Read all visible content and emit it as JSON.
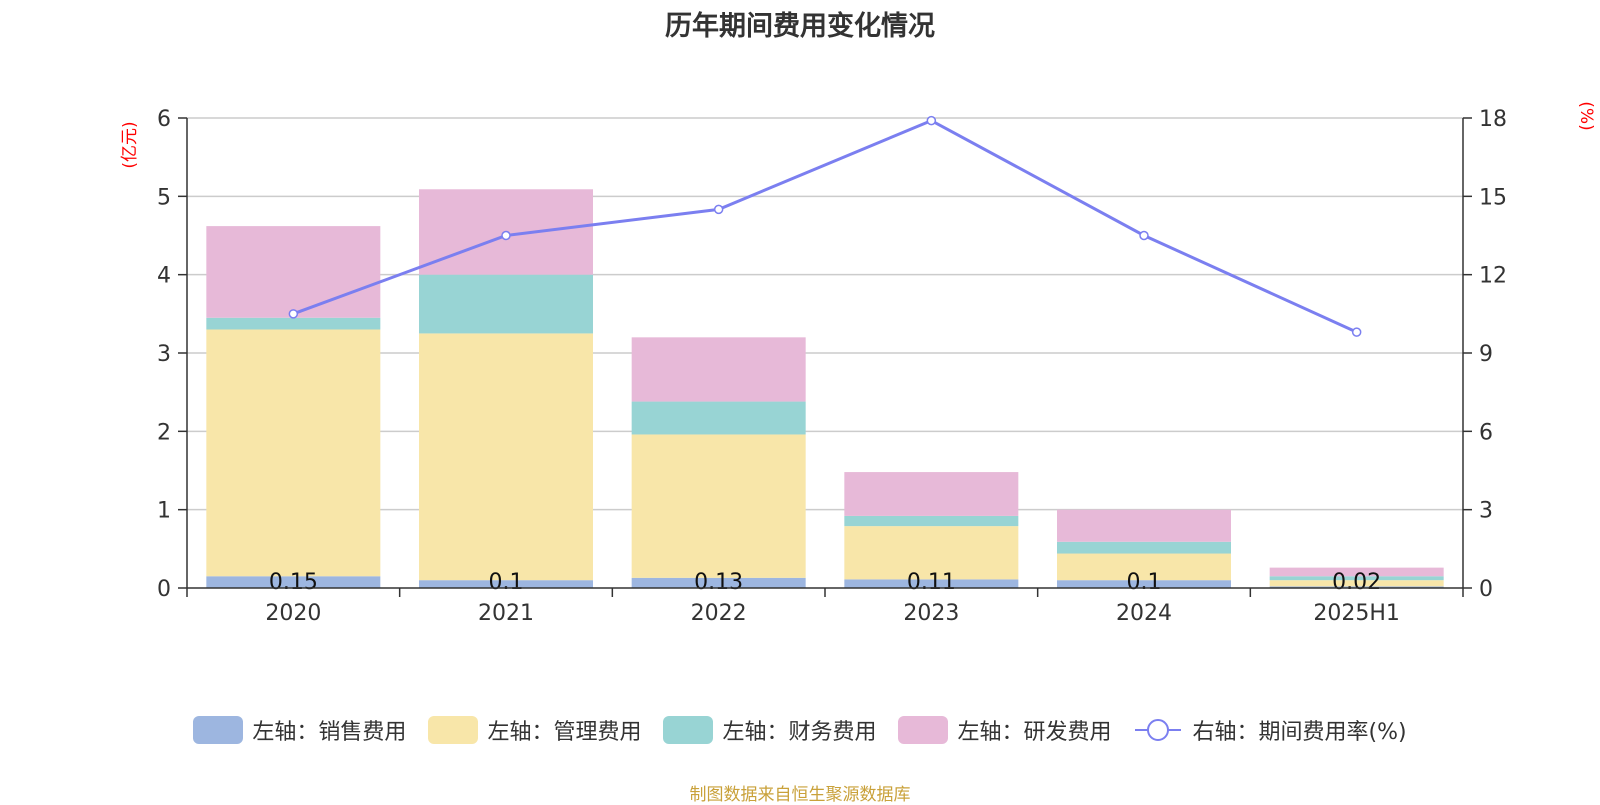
{
  "chart_data": {
    "type": "bar",
    "title": "历年期间费用变化情况",
    "categories": [
      "2020",
      "2021",
      "2022",
      "2023",
      "2024",
      "2025H1"
    ],
    "stacked": true,
    "left_axis": {
      "unit": "(亿元)",
      "ylim": [
        0,
        6
      ],
      "ticks": [
        "0",
        "1",
        "2",
        "3",
        "4",
        "5",
        "6"
      ]
    },
    "right_axis": {
      "unit": "(%)",
      "ylim": [
        0,
        18
      ],
      "ticks": [
        "0",
        "3",
        "6",
        "9",
        "12",
        "15",
        "18"
      ]
    },
    "grid": true,
    "legend_position": "bottom",
    "series": [
      {
        "name": "左轴：销售费用",
        "axis": "left",
        "color": "#9db6e0",
        "values": [
          0.15,
          0.1,
          0.13,
          0.11,
          0.1,
          0.02
        ],
        "labels": [
          "0.15",
          "0.1",
          "0.13",
          "0.11",
          "0.1",
          "0.02"
        ]
      },
      {
        "name": "左轴：管理费用",
        "axis": "left",
        "color": "#f8e6a9",
        "values": [
          3.15,
          3.15,
          1.83,
          0.68,
          0.34,
          0.08
        ]
      },
      {
        "name": "左轴：财务费用",
        "axis": "left",
        "color": "#98d4d4",
        "values": [
          0.15,
          0.75,
          0.42,
          0.13,
          0.15,
          0.05
        ]
      },
      {
        "name": "左轴：研发费用",
        "axis": "left",
        "color": "#e7b9d8",
        "values": [
          1.17,
          1.09,
          0.82,
          0.56,
          0.41,
          0.11
        ]
      },
      {
        "name": "右轴：期间费用率(%)",
        "axis": "right",
        "type": "line",
        "color": "#7b7ff0",
        "values": [
          10.5,
          13.5,
          14.5,
          17.9,
          13.5,
          9.8
        ]
      }
    ],
    "source": "制图数据来自恒生聚源数据库"
  }
}
